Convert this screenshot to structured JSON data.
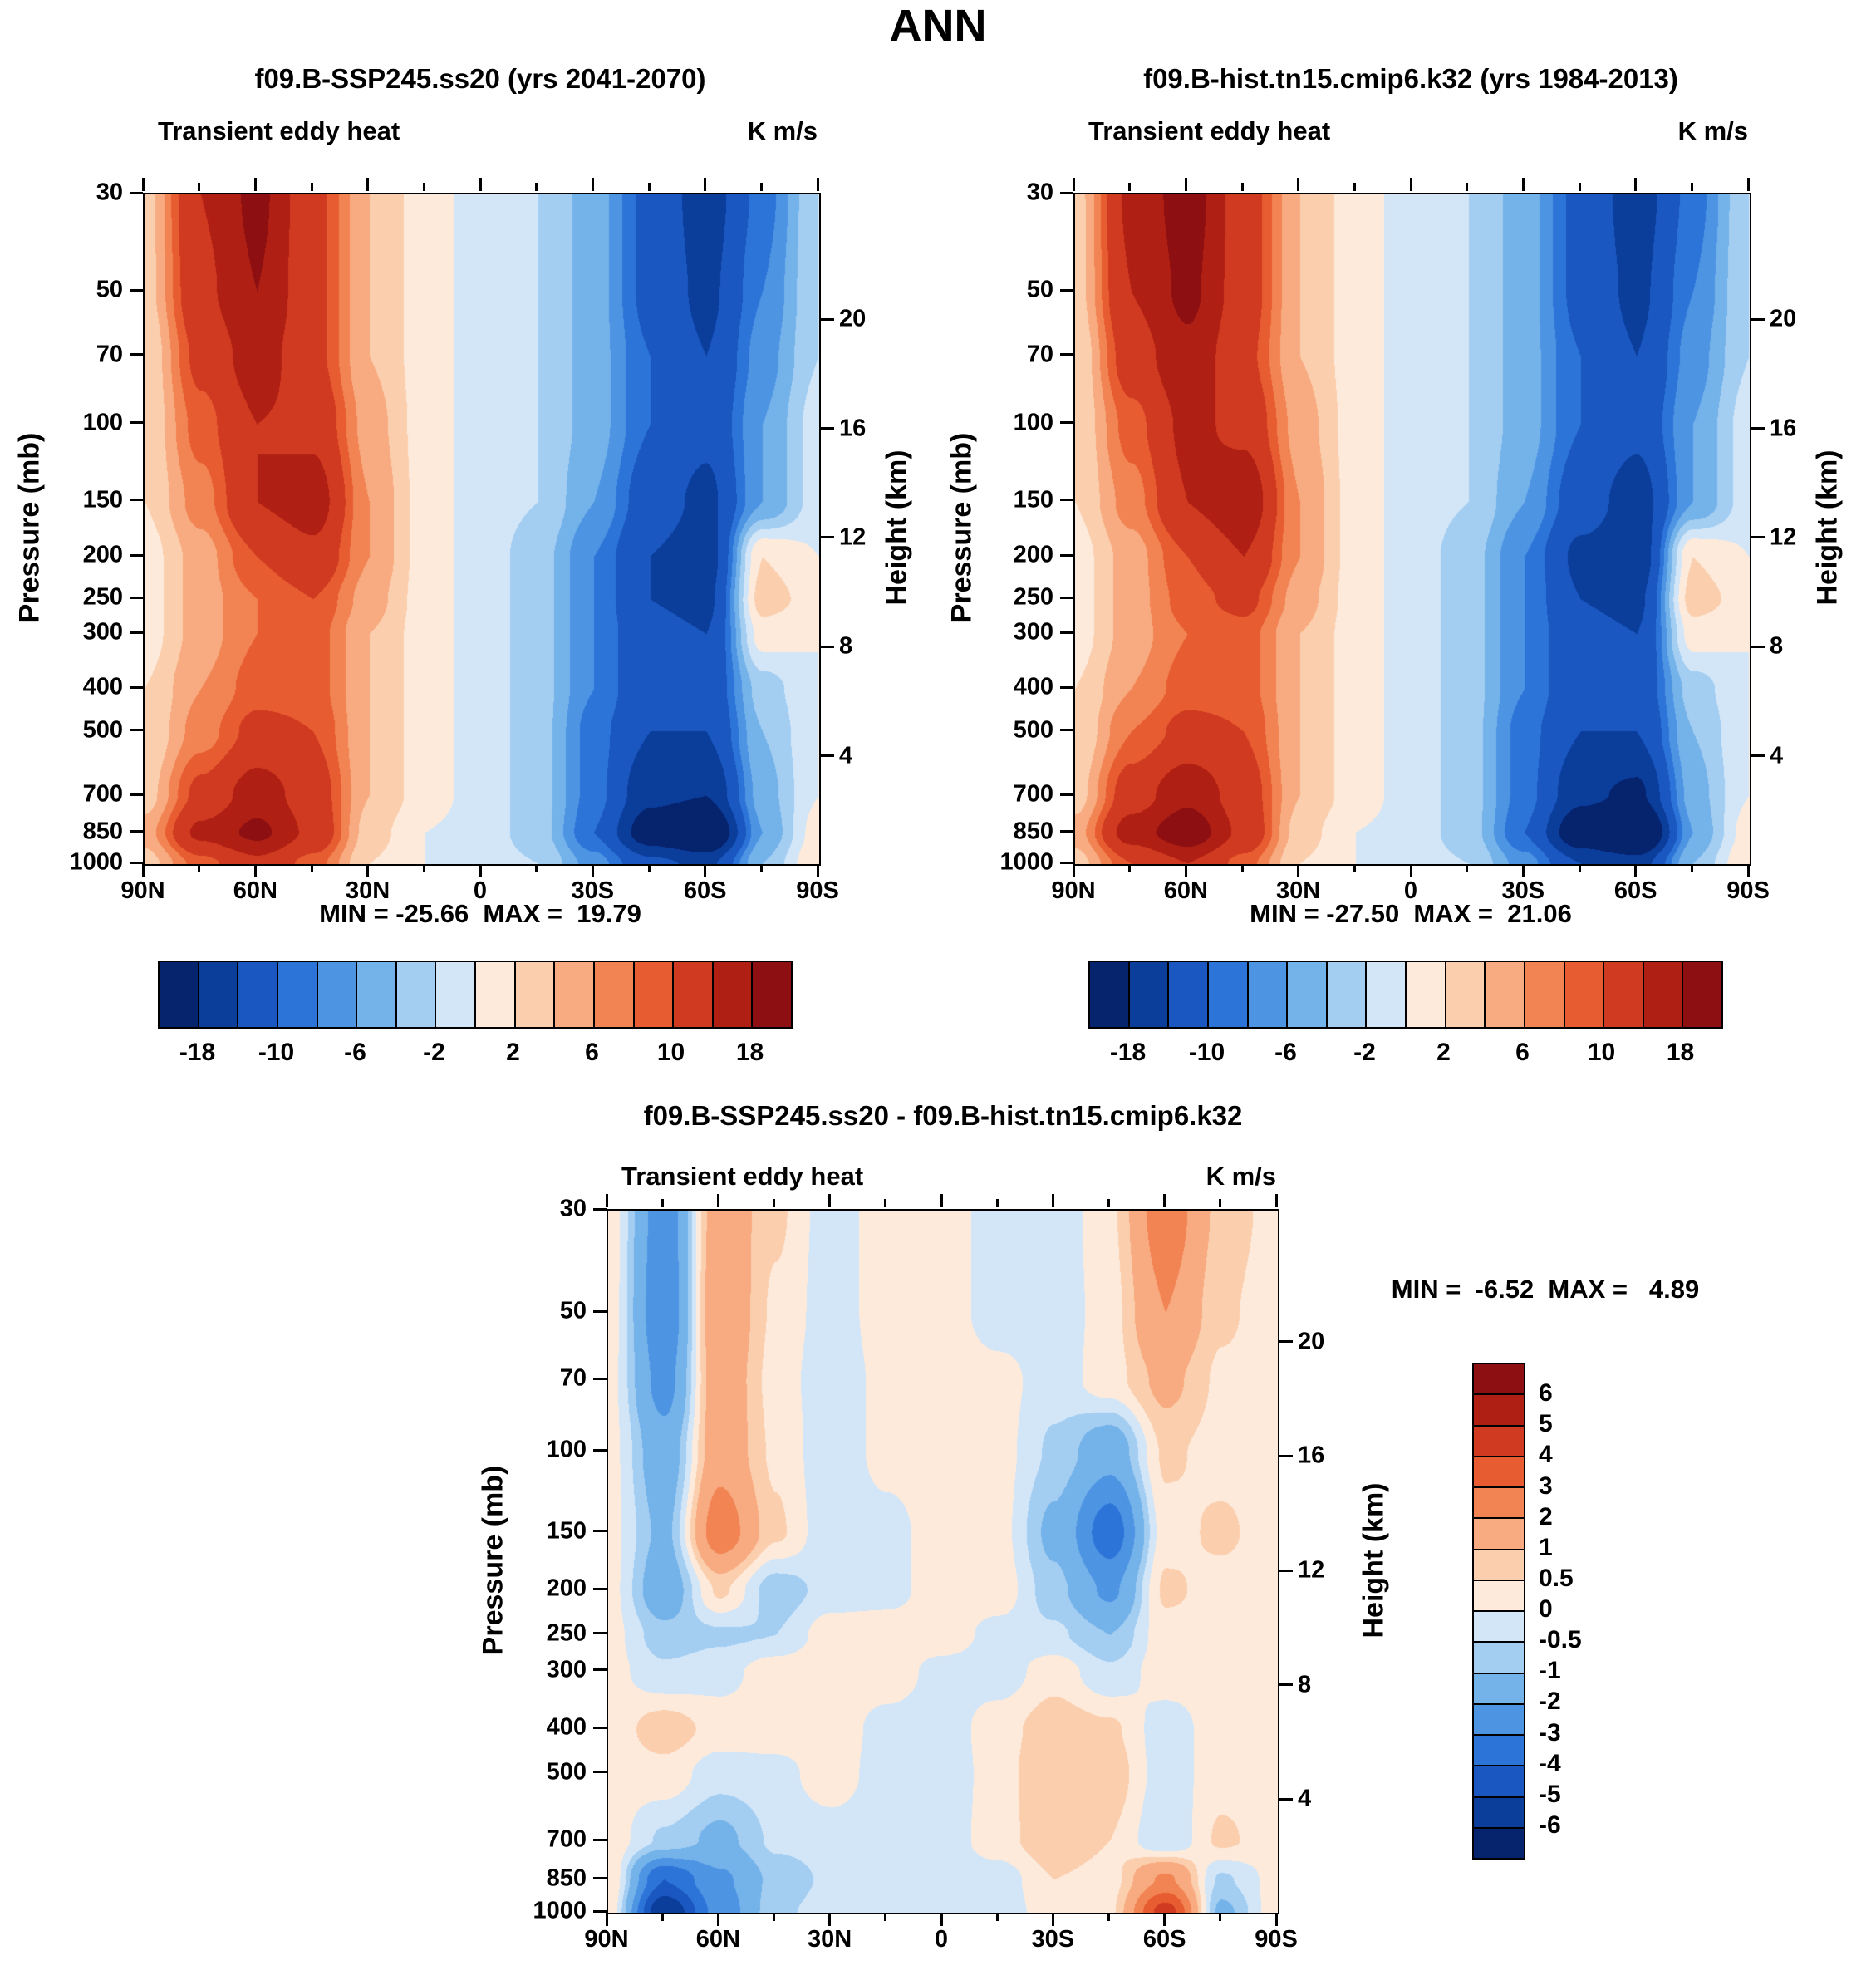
{
  "page_title": "ANN",
  "axes": {
    "pressure_label": "Pressure (mb)",
    "height_label": "Height (km)",
    "pressure_ticks": [
      "30",
      "50",
      "70",
      "100",
      "150",
      "200",
      "250",
      "300",
      "400",
      "500",
      "700",
      "850",
      "1000"
    ],
    "height_ticks": [
      "20",
      "16",
      "12",
      "8",
      "4"
    ],
    "lat_ticks": [
      "90N",
      "60N",
      "30N",
      "0",
      "30S",
      "60S",
      "90S"
    ]
  },
  "panels": [
    {
      "title": "f09.B-SSP245.ss20 (yrs 2041-2070)",
      "subtitle": "Transient eddy heat",
      "units": "K m/s",
      "minmax": "MIN = -25.66  MAX =  19.79"
    },
    {
      "title": "f09.B-hist.tn15.cmip6.k32 (yrs 1984-2013)",
      "subtitle": "Transient eddy heat",
      "units": "K m/s",
      "minmax": "MIN = -27.50  MAX =  21.06"
    },
    {
      "title": "f09.B-SSP245.ss20 - f09.B-hist.tn15.cmip6.k32",
      "subtitle": "Transient eddy heat",
      "units": "K m/s",
      "minmax": "MIN =  -6.52  MAX =   4.89"
    }
  ],
  "palette": [
    "#06236e",
    "#0b3d9b",
    "#1a57c0",
    "#2d74d8",
    "#4d94e3",
    "#74b2ea",
    "#a3cdf1",
    "#d2e6f8",
    "#fdeadb",
    "#fbceae",
    "#f8ab80",
    "#f28454",
    "#e85c31",
    "#d03a20",
    "#b01f14",
    "#8d0f11"
  ],
  "colorbar_main": {
    "labels": [
      "-18",
      "-10",
      "-6",
      "-2",
      "2",
      "6",
      "10",
      "18"
    ]
  },
  "colorbar_diff": {
    "labels": [
      "6",
      "5",
      "4",
      "3",
      "2",
      "1",
      "0.5",
      "0",
      "-0.5",
      "-1",
      "-2",
      "-3",
      "-4",
      "-5",
      "-6"
    ]
  },
  "chart_data": [
    {
      "type": "heatmap",
      "title": "f09.B-SSP245.ss20 (yrs 2041-2070)",
      "subtitle": "Transient eddy heat",
      "units": "K m/s",
      "min": -25.66,
      "max": 19.79,
      "x": [
        "90N",
        "75N",
        "60N",
        "45N",
        "30N",
        "15N",
        "0",
        "15S",
        "30S",
        "45S",
        "60S",
        "75S",
        "90S"
      ],
      "y_pressure_mb": [
        30,
        50,
        70,
        100,
        150,
        200,
        250,
        300,
        400,
        500,
        700,
        850,
        1000
      ],
      "levels": [
        -18,
        -14,
        -10,
        -8,
        -6,
        -4,
        -2,
        0,
        2,
        4,
        6,
        8,
        10,
        14,
        18
      ],
      "values": [
        [
          3,
          14,
          19,
          11,
          4,
          1,
          -1,
          -2,
          -5,
          -11,
          -16,
          -9,
          -2
        ],
        [
          3,
          13,
          18,
          11,
          4,
          1,
          -1,
          -2,
          -5,
          -11,
          -15,
          -8,
          -2
        ],
        [
          2,
          11,
          16,
          11,
          4,
          1,
          -1,
          -2,
          -5,
          -10,
          -14,
          -7,
          -2
        ],
        [
          2,
          9,
          14,
          13,
          5,
          1,
          -1,
          -2,
          -5,
          -10,
          -13,
          -6,
          -1
        ],
        [
          2,
          7,
          14,
          16,
          6,
          1,
          -1,
          -2,
          -6,
          -12,
          -15,
          -6,
          -1
        ],
        [
          1,
          5,
          10,
          13,
          6,
          1,
          -1,
          -3,
          -8,
          -14,
          -16,
          2,
          0
        ],
        [
          1,
          5,
          8,
          10,
          5,
          1,
          -1,
          -3,
          -8,
          -14,
          -15,
          3,
          1
        ],
        [
          1,
          5,
          8,
          9,
          4,
          1,
          -1,
          -3,
          -8,
          -13,
          -14,
          1,
          0
        ],
        [
          2,
          6,
          9,
          9,
          4,
          1,
          -1,
          -3,
          -8,
          -13,
          -13,
          -3,
          0
        ],
        [
          2,
          7,
          11,
          10,
          4,
          1,
          -1,
          -3,
          -9,
          -14,
          -14,
          -4,
          0
        ],
        [
          3,
          11,
          16,
          12,
          4,
          1,
          -1,
          -3,
          -9,
          -17,
          -18,
          -5,
          0
        ],
        [
          5,
          15,
          19,
          13,
          3,
          0,
          -1,
          -3,
          -10,
          -21,
          -25,
          -6,
          1
        ],
        [
          3,
          9,
          13,
          9,
          2,
          0,
          -1,
          -2,
          -7,
          -13,
          -15,
          -4,
          2
        ]
      ]
    },
    {
      "type": "heatmap",
      "title": "f09.B-hist.tn15.cmip6.k32 (yrs 1984-2013)",
      "subtitle": "Transient eddy heat",
      "units": "K m/s",
      "min": -27.5,
      "max": 21.06,
      "x": [
        "90N",
        "75N",
        "60N",
        "45N",
        "30N",
        "15N",
        "0",
        "15S",
        "30S",
        "45S",
        "60S",
        "75S",
        "90S"
      ],
      "y_pressure_mb": [
        30,
        50,
        70,
        100,
        150,
        200,
        250,
        300,
        400,
        500,
        700,
        850,
        1000
      ],
      "levels": [
        -18,
        -14,
        -10,
        -8,
        -6,
        -4,
        -2,
        0,
        2,
        4,
        6,
        8,
        10,
        14,
        18
      ],
      "values": [
        [
          3,
          15,
          20,
          12,
          4,
          1,
          -1,
          -2,
          -5,
          -11,
          -16,
          -9,
          -2
        ],
        [
          3,
          14,
          19,
          12,
          4,
          1,
          -1,
          -2,
          -5,
          -11,
          -15,
          -8,
          -2
        ],
        [
          2,
          12,
          17,
          11,
          4,
          1,
          -1,
          -2,
          -5,
          -10,
          -14,
          -7,
          -2
        ],
        [
          2,
          9,
          15,
          13,
          5,
          1,
          -1,
          -2,
          -5,
          -10,
          -13,
          -6,
          -1
        ],
        [
          2,
          7,
          14,
          17,
          6,
          1,
          -1,
          -2,
          -6,
          -12,
          -16,
          -6,
          -1
        ],
        [
          1,
          5,
          10,
          14,
          6,
          1,
          -1,
          -3,
          -8,
          -15,
          -17,
          2,
          0
        ],
        [
          1,
          5,
          9,
          11,
          5,
          1,
          -1,
          -3,
          -8,
          -14,
          -15,
          3,
          1
        ],
        [
          1,
          5,
          8,
          9,
          4,
          1,
          -1,
          -3,
          -8,
          -13,
          -14,
          1,
          0
        ],
        [
          2,
          6,
          9,
          9,
          4,
          1,
          -1,
          -3,
          -8,
          -13,
          -13,
          -3,
          0
        ],
        [
          2,
          8,
          11,
          10,
          4,
          1,
          -1,
          -3,
          -9,
          -14,
          -14,
          -4,
          0
        ],
        [
          3,
          12,
          17,
          12,
          4,
          1,
          -1,
          -3,
          -9,
          -17,
          -19,
          -5,
          0
        ],
        [
          5,
          16,
          21,
          13,
          3,
          0,
          -1,
          -3,
          -10,
          -22,
          -27,
          -6,
          1
        ],
        [
          3,
          10,
          14,
          9,
          2,
          0,
          -1,
          -2,
          -7,
          -14,
          -16,
          -4,
          2
        ]
      ]
    },
    {
      "type": "heatmap",
      "title": "f09.B-SSP245.ss20 - f09.B-hist.tn15.cmip6.k32",
      "subtitle": "Transient eddy heat",
      "units": "K m/s",
      "min": -6.52,
      "max": 4.89,
      "x": [
        "90N",
        "75N",
        "60N",
        "45N",
        "30N",
        "15N",
        "0",
        "15S",
        "30S",
        "45S",
        "60S",
        "75S",
        "90S"
      ],
      "y_pressure_mb": [
        30,
        50,
        70,
        100,
        150,
        200,
        250,
        300,
        400,
        500,
        700,
        850,
        1000
      ],
      "levels": [
        -6,
        -5,
        -4,
        -3,
        -2,
        -1,
        -0.5,
        0,
        0.5,
        1,
        2,
        3,
        4,
        5,
        6
      ],
      "values": [
        [
          0.3,
          -2.6,
          1.6,
          0.6,
          -0.3,
          0.3,
          0.3,
          -0.3,
          -0.4,
          0.4,
          2.6,
          0.8,
          0.3
        ],
        [
          0.3,
          -2.8,
          1.8,
          0.4,
          -0.3,
          0.3,
          0.3,
          -0.3,
          -0.4,
          0.3,
          2.0,
          0.6,
          0.2
        ],
        [
          0.2,
          -2.4,
          1.6,
          0.3,
          -0.4,
          0.2,
          0.4,
          0.2,
          -0.3,
          0.3,
          1.2,
          0.4,
          0.2
        ],
        [
          0.2,
          -1.6,
          1.6,
          0.4,
          -0.4,
          0.2,
          0.4,
          0.2,
          -0.6,
          -1.6,
          0.6,
          0.3,
          0.2
        ],
        [
          0.2,
          -1.2,
          2.6,
          0.6,
          -0.4,
          -0.2,
          0.3,
          0.2,
          -1.2,
          -3.6,
          0.3,
          0.6,
          0.2
        ],
        [
          0.2,
          -1.6,
          0.6,
          -0.8,
          -0.3,
          -0.2,
          0.3,
          0.3,
          -0.8,
          -2.2,
          0.6,
          0.3,
          0.2
        ],
        [
          0.2,
          -0.8,
          -0.6,
          -0.5,
          0.3,
          0.3,
          0.3,
          -0.2,
          -0.4,
          -1.0,
          0.3,
          0.3,
          0.2
        ],
        [
          0.2,
          -0.4,
          -0.2,
          0.3,
          0.4,
          0.3,
          -0.2,
          -0.3,
          0.3,
          -0.4,
          0.3,
          0.3,
          0.2
        ],
        [
          0.2,
          0.8,
          0.3,
          0.3,
          0.3,
          -0.2,
          -0.3,
          0.3,
          0.8,
          0.6,
          -0.3,
          0.3,
          0.2
        ],
        [
          0.2,
          0.3,
          -0.3,
          -0.2,
          0.3,
          -0.3,
          -0.4,
          0.3,
          1.0,
          0.8,
          -0.3,
          0.3,
          0.2
        ],
        [
          0.3,
          -0.6,
          -1.2,
          -0.4,
          -0.3,
          -0.4,
          -0.3,
          0.3,
          0.9,
          0.5,
          -0.5,
          0.6,
          0.2
        ],
        [
          0.5,
          -4.0,
          -2.2,
          -0.8,
          -0.4,
          -0.3,
          -0.3,
          -0.3,
          0.5,
          0.3,
          2.2,
          -0.6,
          0.2
        ],
        [
          0.4,
          -6.0,
          -2.6,
          -0.6,
          -0.3,
          -0.3,
          -0.3,
          -0.3,
          0.3,
          0.4,
          4.5,
          -1.2,
          0.3
        ]
      ]
    }
  ]
}
